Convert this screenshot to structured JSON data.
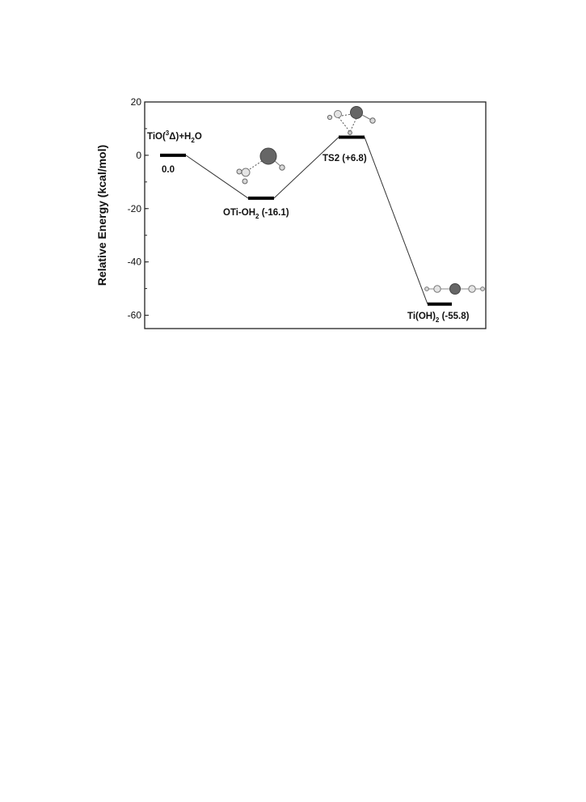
{
  "chart_data": {
    "type": "line",
    "ylabel": "Relative Energy (kcal/mol)",
    "ylim": [
      -65,
      20
    ],
    "y_ticks": [
      "20",
      "0",
      "-20",
      "-40",
      "-60"
    ],
    "grid": false,
    "series": [
      {
        "points": [
          {
            "stage": "TiO(3Δ)+H2O",
            "energy": 0.0
          },
          {
            "stage": "OTi-OH2",
            "energy": -16.1
          },
          {
            "stage": "TS2",
            "energy": 6.8
          },
          {
            "stage": "Ti(OH)2",
            "energy": -55.8
          }
        ]
      }
    ],
    "annotations": {
      "reactant_name": "TiO(",
      "reactant_sup": "3",
      "reactant_delta": "Δ)+H",
      "reactant_sub": "2",
      "reactant_tail": "O",
      "reactant_energy": "0.0",
      "complex_name": "OTi-OH",
      "complex_sub": "2",
      "complex_energy": " (-16.1)",
      "ts_label": "TS2 (+6.8)",
      "product_name": "Ti(OH)",
      "product_sub": "2",
      "product_energy": " (-55.8)"
    }
  }
}
